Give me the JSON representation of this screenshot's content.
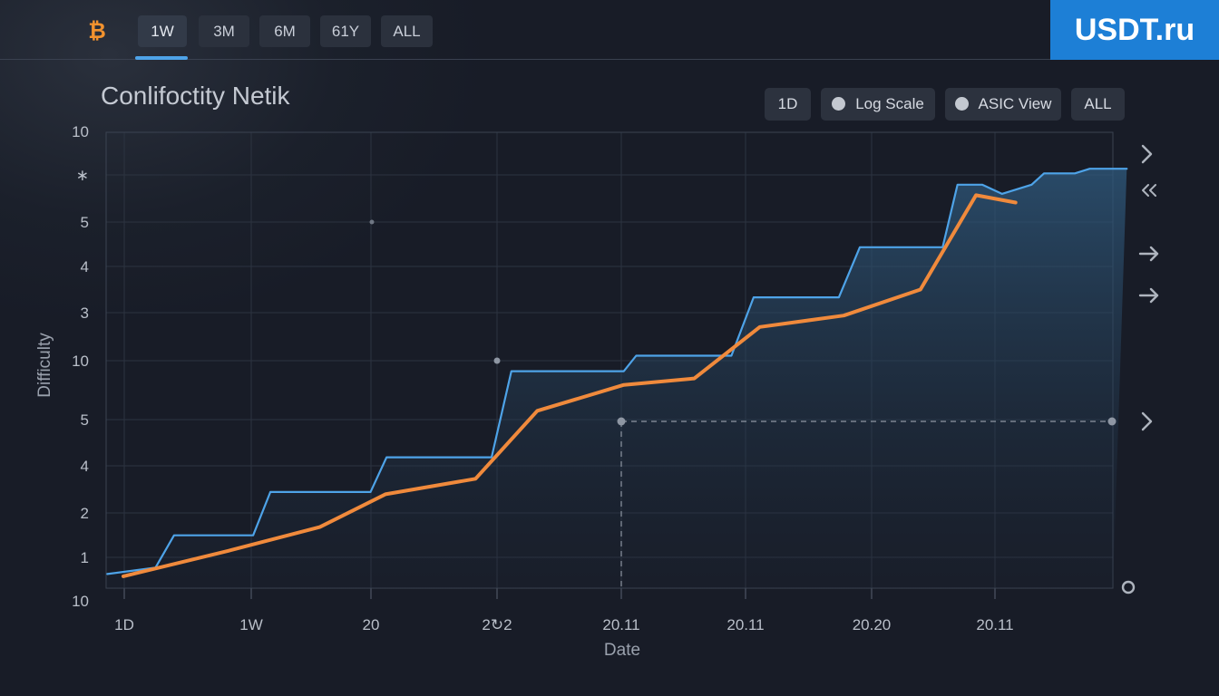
{
  "header": {
    "logo_icon": "bitcoin-icon",
    "ranges": [
      {
        "label": "1W",
        "active": true
      },
      {
        "label": "3M",
        "active": false
      },
      {
        "label": "6M",
        "active": false
      },
      {
        "label": "61Y",
        "active": false
      },
      {
        "label": "ALL",
        "active": false
      }
    ],
    "brand": "USDT.ru"
  },
  "chart_options": {
    "d1_label": "1D",
    "log_scale_label": "Log Scale",
    "asic_view_label": "ASIC View",
    "all_label": "ALL"
  },
  "side_controls": [
    "chevron-right-icon",
    "double-chevron-left-icon",
    "arrow-right-icon",
    "arrow-right-icon",
    "chevron-right-icon",
    "circle-icon"
  ],
  "colors": {
    "accent_blue": "#4ea3e8",
    "accent_orange": "#f08a3c",
    "brand_blue": "#1d7fd6",
    "bitcoin_orange": "#f2922e"
  },
  "chart_data": {
    "type": "line",
    "title": "Conlifoctity Netik",
    "xlabel": "Date",
    "ylabel": "Difficulty",
    "y_tick_labels": [
      "10",
      "1",
      "2",
      "4",
      "5",
      "10",
      "3",
      "4",
      "5",
      "∗",
      "10"
    ],
    "x_tick_labels": [
      "1D",
      "1W",
      "20",
      "2↻2",
      "20.11",
      "20.11",
      "20.20",
      "20.11"
    ],
    "x_range": [
      0,
      8
    ],
    "y_range": [
      0,
      10
    ],
    "grid": true,
    "series": [
      {
        "color": "#4ea3e8",
        "style": "step-area",
        "points": [
          [
            -0.13,
            0.31
          ],
          [
            0.26,
            0.45
          ],
          [
            0.41,
            1.16
          ],
          [
            1.05,
            1.16
          ],
          [
            1.19,
            2.11
          ],
          [
            2.0,
            2.11
          ],
          [
            2.13,
            2.87
          ],
          [
            2.98,
            2.87
          ],
          [
            3.14,
            4.76
          ],
          [
            4.05,
            4.76
          ],
          [
            4.15,
            5.1
          ],
          [
            4.92,
            5.1
          ],
          [
            5.1,
            6.38
          ],
          [
            5.79,
            6.38
          ],
          [
            5.96,
            7.48
          ],
          [
            6.63,
            7.48
          ],
          [
            6.75,
            8.85
          ],
          [
            6.95,
            8.85
          ],
          [
            7.11,
            8.65
          ],
          [
            7.35,
            8.85
          ],
          [
            7.45,
            9.1
          ],
          [
            7.7,
            9.1
          ],
          [
            7.82,
            9.2
          ],
          [
            8.12,
            9.2
          ]
        ]
      },
      {
        "color": "#f08a3c",
        "style": "line",
        "points": [
          [
            0.0,
            0.26
          ],
          [
            0.85,
            0.82
          ],
          [
            1.59,
            1.34
          ],
          [
            2.12,
            2.06
          ],
          [
            2.85,
            2.4
          ],
          [
            3.35,
            3.89
          ],
          [
            4.05,
            4.46
          ],
          [
            4.62,
            4.6
          ],
          [
            5.15,
            5.73
          ],
          [
            5.83,
            5.98
          ],
          [
            6.45,
            6.55
          ],
          [
            6.9,
            8.62
          ],
          [
            7.22,
            8.46
          ]
        ]
      }
    ]
  }
}
